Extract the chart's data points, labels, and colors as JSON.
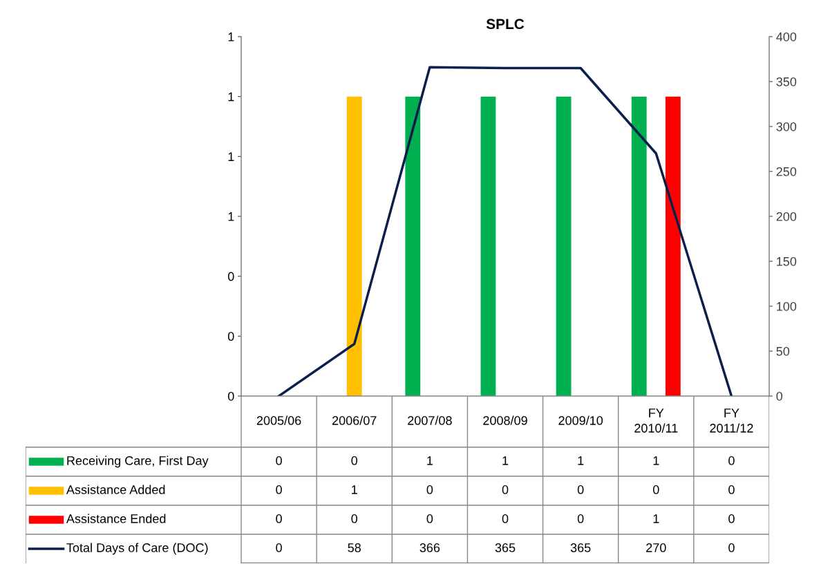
{
  "chart_data": {
    "type": "bar",
    "title": "SPLC",
    "categories": [
      "2005/06",
      "2006/07",
      "2007/08",
      "2008/09",
      "2009/10",
      "FY 2010/11",
      "FY 2011/12"
    ],
    "series": [
      {
        "name": "Receiving Care, First Day",
        "color": "#00b050",
        "values": [
          0,
          0,
          1,
          1,
          1,
          1,
          0
        ]
      },
      {
        "name": "Assistance Added",
        "color": "#ffc000",
        "values": [
          0,
          1,
          0,
          0,
          0,
          0,
          0
        ]
      },
      {
        "name": "Assistance Ended",
        "color": "#ff0000",
        "values": [
          0,
          0,
          0,
          0,
          0,
          1,
          0
        ]
      },
      {
        "name": "Total Days of Care (DOC)",
        "type": "line",
        "axis": "y2",
        "color": "#0b1f4d",
        "values": [
          0,
          58,
          366,
          365,
          365,
          270,
          0
        ]
      }
    ],
    "ylim": [
      0,
      1.2
    ],
    "yticks": [
      0,
      {
        "value": 0.2,
        "label": "0"
      },
      {
        "value": 0.4,
        "label": "0"
      },
      {
        "value": 0.6,
        "label": "1"
      },
      {
        "value": 0.8,
        "label": "1"
      },
      {
        "value": 1.0,
        "label": "1"
      },
      {
        "value": 1.2,
        "label": "1"
      }
    ],
    "y2lim": [
      0,
      400
    ],
    "y2ticks": [
      0,
      50,
      100,
      150,
      200,
      250,
      300,
      350,
      400
    ],
    "data_labels": true,
    "legend": "bottom",
    "grid": false,
    "marker": "none",
    "line_style": "solid"
  }
}
